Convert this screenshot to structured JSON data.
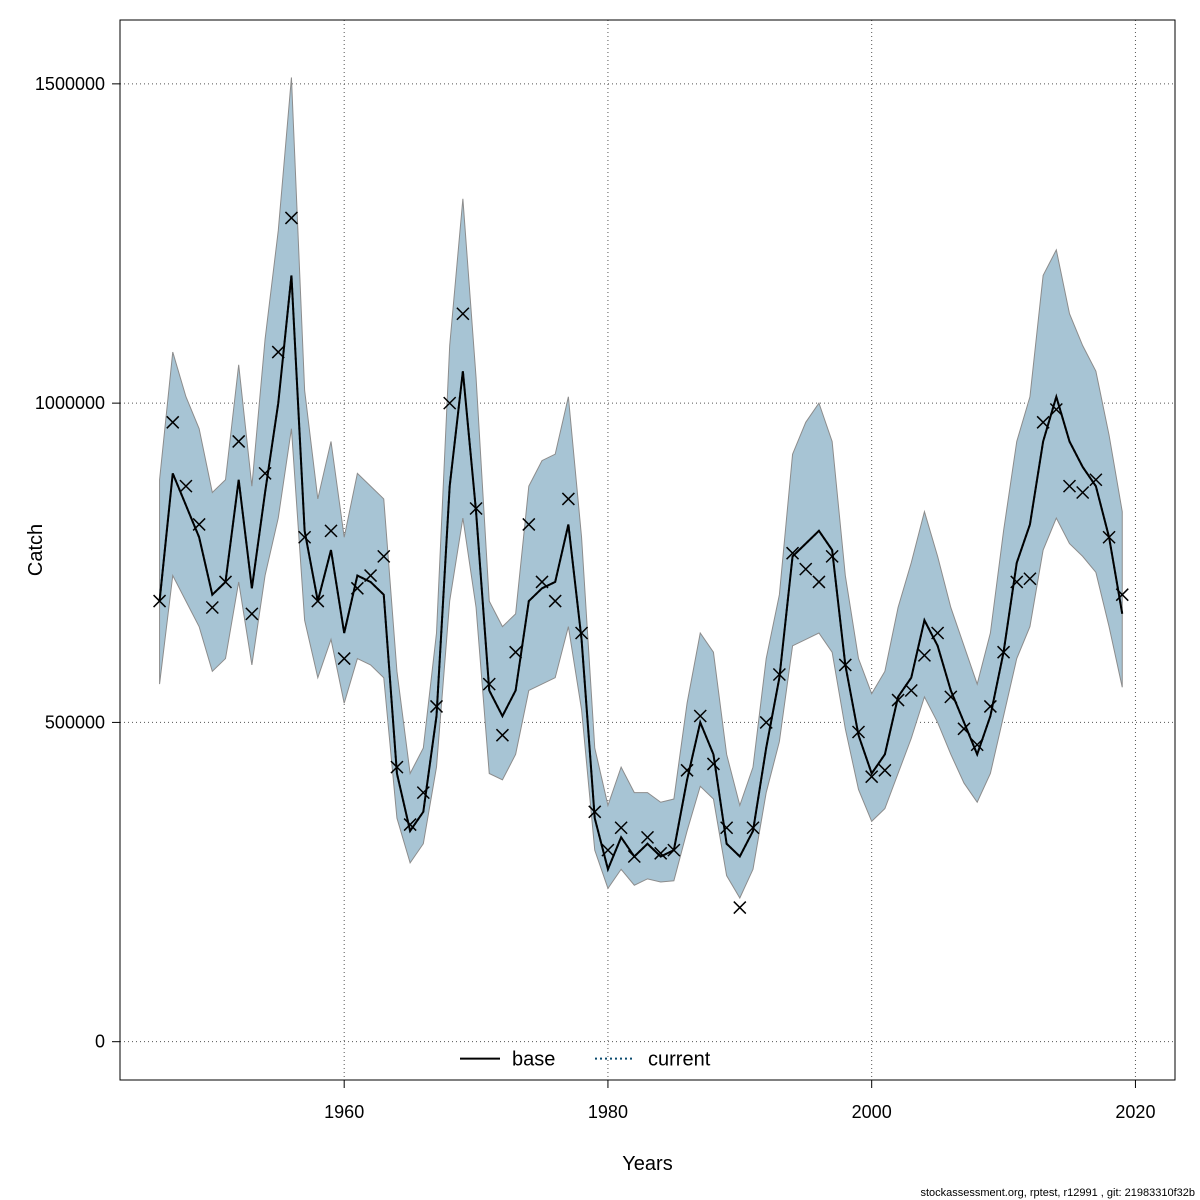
{
  "chart_data": {
    "type": "line",
    "xlabel": "Years",
    "ylabel": "Catch",
    "xlim": [
      1943,
      2023
    ],
    "ylim": [
      -60000,
      1600000
    ],
    "x_ticks": [
      1960,
      1980,
      2000,
      2020
    ],
    "y_ticks": [
      0,
      500000,
      1000000,
      1500000
    ],
    "grid": true,
    "legend_position": "bottom-center",
    "colors": {
      "band_fill": "#a7c4d4",
      "band_stroke": "#8c8c8c",
      "current_line": "#0a4a6e",
      "base_line": "#000000",
      "observed_marker": "#000000"
    },
    "x": [
      1946,
      1947,
      1948,
      1949,
      1950,
      1951,
      1952,
      1953,
      1954,
      1955,
      1956,
      1957,
      1958,
      1959,
      1960,
      1961,
      1962,
      1963,
      1964,
      1965,
      1966,
      1967,
      1968,
      1969,
      1970,
      1971,
      1972,
      1973,
      1974,
      1975,
      1976,
      1977,
      1978,
      1979,
      1980,
      1981,
      1982,
      1983,
      1984,
      1985,
      1986,
      1987,
      1988,
      1989,
      1990,
      1991,
      1992,
      1993,
      1994,
      1995,
      1996,
      1997,
      1998,
      1999,
      2000,
      2001,
      2002,
      2003,
      2004,
      2005,
      2006,
      2007,
      2008,
      2009,
      2010,
      2011,
      2012,
      2013,
      2014,
      2015,
      2016,
      2017,
      2018,
      2019
    ],
    "series": [
      {
        "name": "current",
        "style": "dotted",
        "values": [
          690000,
          890000,
          840000,
          790000,
          700000,
          720000,
          880000,
          710000,
          860000,
          1000000,
          1200000,
          800000,
          690000,
          770000,
          640000,
          730000,
          720000,
          700000,
          420000,
          330000,
          360000,
          510000,
          870000,
          1050000,
          830000,
          550000,
          510000,
          550000,
          690000,
          710000,
          720000,
          810000,
          630000,
          350000,
          270000,
          320000,
          290000,
          310000,
          290000,
          300000,
          410000,
          500000,
          450000,
          310000,
          290000,
          330000,
          460000,
          570000,
          760000,
          780000,
          800000,
          770000,
          590000,
          480000,
          420000,
          450000,
          540000,
          570000,
          660000,
          620000,
          550000,
          500000,
          450000,
          510000,
          610000,
          750000,
          810000,
          940000,
          1010000,
          940000,
          900000,
          870000,
          790000,
          670000
        ]
      },
      {
        "name": "base",
        "style": "solid",
        "values": [
          690000,
          890000,
          840000,
          790000,
          700000,
          720000,
          880000,
          710000,
          860000,
          1000000,
          1200000,
          800000,
          690000,
          770000,
          640000,
          730000,
          720000,
          700000,
          420000,
          330000,
          360000,
          510000,
          870000,
          1050000,
          830000,
          550000,
          510000,
          550000,
          690000,
          710000,
          720000,
          810000,
          630000,
          350000,
          270000,
          320000,
          290000,
          310000,
          290000,
          300000,
          410000,
          500000,
          450000,
          310000,
          290000,
          330000,
          460000,
          570000,
          760000,
          780000,
          800000,
          770000,
          590000,
          480000,
          420000,
          450000,
          540000,
          570000,
          660000,
          620000,
          550000,
          500000,
          450000,
          510000,
          610000,
          750000,
          810000,
          940000,
          1010000,
          940000,
          900000,
          870000,
          790000,
          670000
        ]
      }
    ],
    "band": {
      "upper": [
        880000,
        1080000,
        1010000,
        960000,
        860000,
        880000,
        1060000,
        870000,
        1100000,
        1270000,
        1510000,
        1020000,
        850000,
        940000,
        790000,
        890000,
        870000,
        850000,
        580000,
        420000,
        460000,
        640000,
        1090000,
        1320000,
        1040000,
        690000,
        650000,
        670000,
        870000,
        910000,
        920000,
        1010000,
        790000,
        460000,
        370000,
        430000,
        390000,
        390000,
        375000,
        380000,
        530000,
        640000,
        610000,
        450000,
        370000,
        430000,
        600000,
        700000,
        920000,
        970000,
        1000000,
        940000,
        730000,
        600000,
        545000,
        580000,
        680000,
        750000,
        830000,
        760000,
        680000,
        620000,
        560000,
        640000,
        800000,
        940000,
        1010000,
        1200000,
        1240000,
        1140000,
        1090000,
        1050000,
        950000,
        830000
      ],
      "lower": [
        560000,
        730000,
        690000,
        650000,
        580000,
        600000,
        720000,
        590000,
        730000,
        820000,
        960000,
        660000,
        570000,
        630000,
        530000,
        600000,
        590000,
        570000,
        350000,
        280000,
        310000,
        430000,
        690000,
        820000,
        680000,
        420000,
        410000,
        450000,
        550000,
        560000,
        570000,
        650000,
        520000,
        300000,
        240000,
        270000,
        245000,
        255000,
        250000,
        252000,
        330000,
        400000,
        380000,
        260000,
        225000,
        270000,
        390000,
        470000,
        620000,
        630000,
        640000,
        610000,
        490000,
        395000,
        345000,
        365000,
        420000,
        475000,
        540000,
        500000,
        450000,
        405000,
        375000,
        420000,
        510000,
        600000,
        650000,
        770000,
        820000,
        780000,
        760000,
        735000,
        650000,
        555000
      ]
    },
    "observed": [
      690000,
      970000,
      870000,
      810000,
      680000,
      720000,
      940000,
      670000,
      890000,
      1080000,
      1290000,
      790000,
      690000,
      800000,
      600000,
      710000,
      730000,
      760000,
      430000,
      340000,
      390000,
      525000,
      1000000,
      1140000,
      835000,
      560000,
      480000,
      610000,
      810000,
      720000,
      690000,
      850000,
      640000,
      360000,
      300000,
      335000,
      290000,
      320000,
      295000,
      300000,
      425000,
      510000,
      435000,
      335000,
      210000,
      335000,
      500000,
      575000,
      765000,
      740000,
      720000,
      760000,
      590000,
      485000,
      415000,
      425000,
      535000,
      550000,
      605000,
      640000,
      540000,
      490000,
      465000,
      525000,
      610000,
      720000,
      725000,
      970000,
      990000,
      870000,
      860000,
      880000,
      790000,
      700000
    ],
    "legend": [
      {
        "label": "base",
        "style": "solid"
      },
      {
        "label": "current",
        "style": "dotted"
      }
    ],
    "footer": "stockassessment.org, rptest, r12991 , git: 21983310f32b"
  }
}
